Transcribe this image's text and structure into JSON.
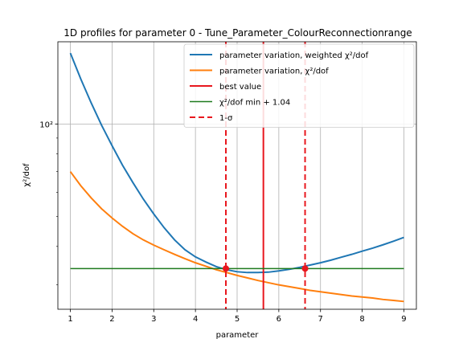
{
  "chart_data": {
    "type": "line",
    "title": "1D profiles for parameter 0 - Tune_Parameter_ColourReconnectionrange",
    "xlabel": "parameter",
    "ylabel": "χ²/dof",
    "xlim": [
      0.7,
      9.3
    ],
    "ylim": [
      25,
      185
    ],
    "yscale": "log",
    "grid": true,
    "legend_position": "top-right",
    "x_ticks": [
      "1",
      "2",
      "3",
      "4",
      "5",
      "6",
      "7",
      "8",
      "9"
    ],
    "y_major_tick_label": "10²",
    "series": [
      {
        "name": "parameter variation, weighted χ²/dof",
        "color": "#1f77b4",
        "style": "solid",
        "x": [
          1,
          1.25,
          1.5,
          1.75,
          2,
          2.25,
          2.5,
          2.75,
          3,
          3.25,
          3.5,
          3.75,
          4,
          4.25,
          4.5,
          4.75,
          5,
          5.25,
          5.5,
          5.75,
          6,
          6.25,
          6.5,
          6.75,
          7,
          7.25,
          7.5,
          7.75,
          8,
          8.25,
          8.5,
          8.75,
          9
        ],
        "y": [
          170,
          140,
          117,
          99,
          85,
          73.5,
          64.5,
          57,
          51,
          46,
          42,
          39,
          37,
          35.6,
          34.4,
          33.6,
          33.1,
          32.9,
          32.9,
          33.0,
          33.3,
          33.7,
          34.2,
          34.8,
          35.4,
          36.1,
          36.9,
          37.7,
          38.6,
          39.5,
          40.5,
          41.6,
          42.8
        ]
      },
      {
        "name": "parameter variation, χ²/dof",
        "color": "#ff7f0e",
        "style": "solid",
        "x": [
          1,
          1.25,
          1.5,
          1.75,
          2,
          2.25,
          2.5,
          2.75,
          3,
          3.25,
          3.5,
          3.75,
          4,
          4.25,
          4.5,
          4.75,
          5,
          5.25,
          5.5,
          5.75,
          6,
          6.25,
          6.5,
          6.75,
          7,
          7.25,
          7.5,
          7.75,
          8,
          8.25,
          8.5,
          8.75,
          9
        ],
        "y": [
          70,
          63,
          57.5,
          53,
          49.5,
          46.5,
          44,
          42,
          40.4,
          39.0,
          37.7,
          36.5,
          35.4,
          34.5,
          33.6,
          32.9,
          32.2,
          31.6,
          31.0,
          30.5,
          30.0,
          29.6,
          29.2,
          28.8,
          28.5,
          28.2,
          27.9,
          27.6,
          27.4,
          27.2,
          26.9,
          26.7,
          26.5
        ]
      },
      {
        "name": "best value",
        "color": "#e8171e",
        "style": "vline",
        "x_value": 5.63
      },
      {
        "name": "χ²/dof min + 1.04",
        "color": "#1e7a1e",
        "style": "hline",
        "y_value": 33.9
      },
      {
        "name": "1-σ",
        "color": "#e8171e",
        "style": "dashed-vlines",
        "x_values": [
          4.73,
          6.63
        ],
        "marker_y": 33.9
      }
    ]
  }
}
